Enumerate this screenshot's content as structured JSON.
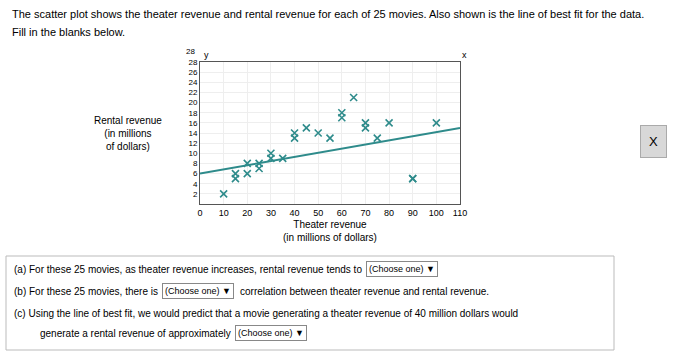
{
  "chart_data": {
    "type": "scatter",
    "title": "The scatter plot shows the theater revenue and rental revenue for each of 25 movies. Also shown is the line of best fit for the data.",
    "subtitle": "Fill in the blanks below.",
    "xlabel": "Theater revenue\n(in millions of dollars)",
    "ylabel": "Rental revenue\n(in millions\nof dollars)",
    "series": [
      {
        "type": "scatter",
        "marker": "x",
        "color": "#2e8b8b",
        "x": [
          10,
          15,
          15,
          20,
          20,
          25,
          25,
          30,
          30,
          35,
          40,
          40,
          45,
          50,
          55,
          60,
          60,
          65,
          70,
          70,
          75,
          80,
          90,
          90,
          100
        ],
        "values": [
          2,
          6,
          5,
          8,
          6,
          7,
          8,
          10,
          9,
          9,
          14,
          13,
          15,
          14,
          13,
          18,
          17,
          21,
          16,
          15,
          13,
          16,
          5,
          5,
          16
        ]
      },
      {
        "type": "line",
        "line_style": "solid",
        "color": "#2e8b8b",
        "x": [
          0,
          110
        ],
        "values": [
          6.0,
          15.0
        ]
      }
    ],
    "xlim": [
      0,
      110
    ],
    "xticks": [
      0,
      10,
      20,
      30,
      40,
      50,
      60,
      70,
      80,
      90,
      100,
      110
    ],
    "ylim": [
      0,
      28
    ],
    "yticks": [
      2,
      4,
      6,
      8,
      10,
      12,
      14,
      16,
      18,
      20,
      22,
      24,
      26,
      28
    ],
    "grid": true,
    "annotations": [
      "(a) For these 25 movies, as theater revenue increases, rental revenue tends to",
      "(Choose one) ▼",
      "(b) For these 25 movies, there is",
      "(Choose one) ▼",
      "correlation between theater revenue and rental revenue.",
      "(c) Using the line of best fit, we would predict that a movie generating a theater revenue of 40 million dollars would",
      "generate a rental revenue of approximately",
      "(Choose one) ▼",
      "X",
      "y",
      "x",
      "28"
    ]
  }
}
